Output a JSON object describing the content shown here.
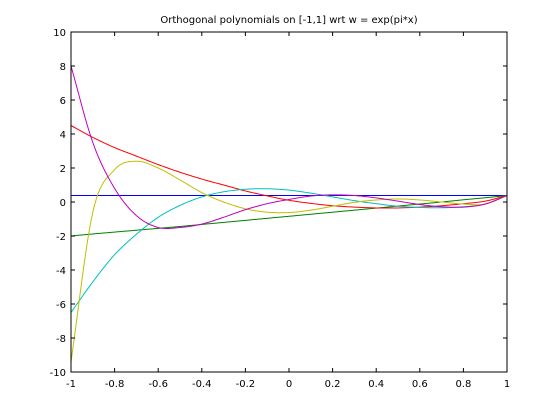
{
  "chart_data": {
    "type": "line",
    "title": "Orthogonal polynomials on [-1,1] wrt w = exp(pi*x)",
    "xlabel": "",
    "ylabel": "",
    "xlim": [
      -1,
      1
    ],
    "ylim": [
      -10,
      10
    ],
    "x_ticks": [
      -1,
      -0.8,
      -0.6,
      -0.4,
      -0.2,
      0,
      0.2,
      0.4,
      0.6,
      0.8,
      1
    ],
    "x_tick_labels": [
      "-1",
      "-0.8",
      "-0.6",
      "-0.4",
      "-0.2",
      "0",
      "0.2",
      "0.4",
      "0.6",
      "0.8",
      "1"
    ],
    "y_ticks": [
      -10,
      -8,
      -6,
      -4,
      -2,
      0,
      2,
      4,
      6,
      8,
      10
    ],
    "y_tick_labels": [
      "-10",
      "-8",
      "-6",
      "-4",
      "-2",
      "0",
      "2",
      "4",
      "6",
      "8",
      "10"
    ],
    "grid": false,
    "x": [
      -1,
      -0.9,
      -0.8,
      -0.7,
      -0.6,
      -0.5,
      -0.4,
      -0.3,
      -0.2,
      -0.1,
      0,
      0.1,
      0.2,
      0.3,
      0.4,
      0.5,
      0.6,
      0.7,
      0.8,
      0.9,
      1
    ],
    "series": [
      {
        "color": "#0000ff",
        "values": [
          0.38,
          0.38,
          0.38,
          0.38,
          0.38,
          0.38,
          0.38,
          0.38,
          0.38,
          0.38,
          0.38,
          0.38,
          0.38,
          0.38,
          0.38,
          0.38,
          0.38,
          0.38,
          0.38,
          0.38,
          0.38
        ]
      },
      {
        "color": "#008000",
        "values": [
          -2.0,
          -1.88,
          -1.77,
          -1.66,
          -1.55,
          -1.44,
          -1.32,
          -1.2,
          -1.08,
          -0.96,
          -0.84,
          -0.72,
          -0.6,
          -0.48,
          -0.36,
          -0.24,
          -0.12,
          0.0,
          0.13,
          0.25,
          0.38
        ]
      },
      {
        "color": "#ff0000",
        "values": [
          4.5,
          3.8,
          3.2,
          2.7,
          2.2,
          1.75,
          1.35,
          1.0,
          0.65,
          0.36,
          0.1,
          -0.08,
          -0.22,
          -0.3,
          -0.35,
          -0.35,
          -0.3,
          -0.22,
          -0.1,
          0.05,
          0.38
        ]
      },
      {
        "color": "#00bfbf",
        "values": [
          -6.5,
          -4.7,
          -3.1,
          -1.9,
          -0.9,
          -0.2,
          0.3,
          0.6,
          0.75,
          0.78,
          0.7,
          0.52,
          0.3,
          0.08,
          -0.1,
          -0.25,
          -0.32,
          -0.34,
          -0.28,
          -0.12,
          0.38
        ]
      },
      {
        "color": "#bfbf00",
        "values": [
          -9.4,
          -0.6,
          1.9,
          2.4,
          2.0,
          1.3,
          0.55,
          0.0,
          -0.4,
          -0.6,
          -0.62,
          -0.48,
          -0.25,
          -0.02,
          0.12,
          0.18,
          0.12,
          0.0,
          -0.12,
          -0.12,
          0.38
        ]
      },
      {
        "color": "#bf00bf",
        "values": [
          8.0,
          3.5,
          0.8,
          -0.8,
          -1.5,
          -1.5,
          -1.3,
          -0.9,
          -0.45,
          -0.1,
          0.15,
          0.35,
          0.42,
          0.38,
          0.24,
          0.05,
          -0.15,
          -0.28,
          -0.3,
          -0.12,
          0.38
        ]
      }
    ]
  }
}
